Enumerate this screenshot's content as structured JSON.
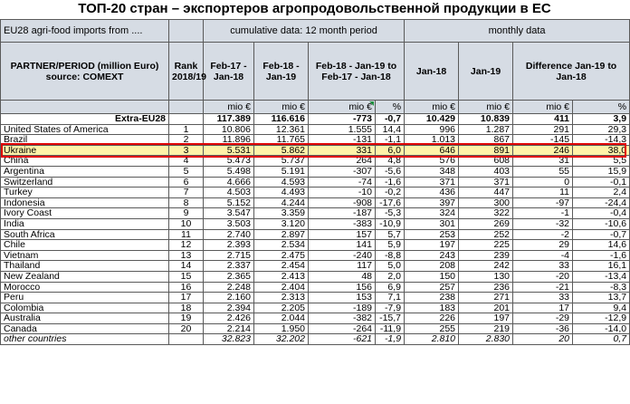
{
  "title": "ТОП-20 стран – экспортеров агропродовольственной продукции в ЕС",
  "header": {
    "top_left": "EU28 agri-food imports from ....",
    "group_cumulative": "cumulative data: 12 month period",
    "group_monthly": "monthly data",
    "col_partner": "PARTNER/PERIOD (million Euro) source: COMEXT",
    "col_rank": "Rank 2018/19",
    "col_c1": "Feb-17 - Jan-18",
    "col_c2": "Feb-18 - Jan-19",
    "col_c3": "Feb-18 - Jan-19 to Feb-17 - Jan-18",
    "col_m1": "Jan-18",
    "col_m2": "Jan-19",
    "col_m3": "Difference Jan-19 to Jan-18",
    "units": [
      "mio €",
      "mio €",
      "mio €",
      "%",
      "mio €",
      "mio €",
      "mio €",
      "%"
    ]
  },
  "rows": [
    {
      "partner": "Extra-EU28",
      "rank": "",
      "c1": "117.389",
      "c2": "116.616",
      "d": "-773",
      "p": "-0,7",
      "m1": "10.429",
      "m2": "10.839",
      "md": "411",
      "mp": "3,9"
    },
    {
      "partner": "United States of America",
      "rank": "1",
      "c1": "10.806",
      "c2": "12.361",
      "d": "1.555",
      "p": "14,4",
      "m1": "996",
      "m2": "1.287",
      "md": "291",
      "mp": "29,3"
    },
    {
      "partner": "Brazil",
      "rank": "2",
      "c1": "11.896",
      "c2": "11.765",
      "d": "-131",
      "p": "-1,1",
      "m1": "1.013",
      "m2": "867",
      "md": "-145",
      "mp": "-14,3"
    },
    {
      "partner": "Ukraine",
      "rank": "3",
      "c1": "5.531",
      "c2": "5.862",
      "d": "331",
      "p": "6,0",
      "m1": "646",
      "m2": "891",
      "md": "246",
      "mp": "38,0"
    },
    {
      "partner": "China",
      "rank": "4",
      "c1": "5.473",
      "c2": "5.737",
      "d": "264",
      "p": "4,8",
      "m1": "576",
      "m2": "608",
      "md": "31",
      "mp": "5,5"
    },
    {
      "partner": "Argentina",
      "rank": "5",
      "c1": "5.498",
      "c2": "5.191",
      "d": "-307",
      "p": "-5,6",
      "m1": "348",
      "m2": "403",
      "md": "55",
      "mp": "15,9"
    },
    {
      "partner": "Switzerland",
      "rank": "6",
      "c1": "4.666",
      "c2": "4.593",
      "d": "-74",
      "p": "-1,6",
      "m1": "371",
      "m2": "371",
      "md": "0",
      "mp": "-0,1"
    },
    {
      "partner": "Turkey",
      "rank": "7",
      "c1": "4.503",
      "c2": "4.493",
      "d": "-10",
      "p": "-0,2",
      "m1": "436",
      "m2": "447",
      "md": "11",
      "mp": "2,4"
    },
    {
      "partner": "Indonesia",
      "rank": "8",
      "c1": "5.152",
      "c2": "4.244",
      "d": "-908",
      "p": "-17,6",
      "m1": "397",
      "m2": "300",
      "md": "-97",
      "mp": "-24,4"
    },
    {
      "partner": "Ivory Coast",
      "rank": "9",
      "c1": "3.547",
      "c2": "3.359",
      "d": "-187",
      "p": "-5,3",
      "m1": "324",
      "m2": "322",
      "md": "-1",
      "mp": "-0,4"
    },
    {
      "partner": "India",
      "rank": "10",
      "c1": "3.503",
      "c2": "3.120",
      "d": "-383",
      "p": "-10,9",
      "m1": "301",
      "m2": "269",
      "md": "-32",
      "mp": "-10,6"
    },
    {
      "partner": "South Africa",
      "rank": "11",
      "c1": "2.740",
      "c2": "2.897",
      "d": "157",
      "p": "5,7",
      "m1": "253",
      "m2": "252",
      "md": "-2",
      "mp": "-0,7"
    },
    {
      "partner": "Chile",
      "rank": "12",
      "c1": "2.393",
      "c2": "2.534",
      "d": "141",
      "p": "5,9",
      "m1": "197",
      "m2": "225",
      "md": "29",
      "mp": "14,6"
    },
    {
      "partner": "Vietnam",
      "rank": "13",
      "c1": "2.715",
      "c2": "2.475",
      "d": "-240",
      "p": "-8,8",
      "m1": "243",
      "m2": "239",
      "md": "-4",
      "mp": "-1,6"
    },
    {
      "partner": "Thailand",
      "rank": "14",
      "c1": "2.337",
      "c2": "2.454",
      "d": "117",
      "p": "5,0",
      "m1": "208",
      "m2": "242",
      "md": "33",
      "mp": "16,1"
    },
    {
      "partner": "New Zealand",
      "rank": "15",
      "c1": "2.365",
      "c2": "2.413",
      "d": "48",
      "p": "2,0",
      "m1": "150",
      "m2": "130",
      "md": "-20",
      "mp": "-13,4"
    },
    {
      "partner": "Morocco",
      "rank": "16",
      "c1": "2.248",
      "c2": "2.404",
      "d": "156",
      "p": "6,9",
      "m1": "257",
      "m2": "236",
      "md": "-21",
      "mp": "-8,3"
    },
    {
      "partner": "Peru",
      "rank": "17",
      "c1": "2.160",
      "c2": "2.313",
      "d": "153",
      "p": "7,1",
      "m1": "238",
      "m2": "271",
      "md": "33",
      "mp": "13,7"
    },
    {
      "partner": "Colombia",
      "rank": "18",
      "c1": "2.394",
      "c2": "2.205",
      "d": "-189",
      "p": "-7,9",
      "m1": "183",
      "m2": "201",
      "md": "17",
      "mp": "9,4"
    },
    {
      "partner": "Australia",
      "rank": "19",
      "c1": "2.426",
      "c2": "2.044",
      "d": "-382",
      "p": "-15,7",
      "m1": "226",
      "m2": "197",
      "md": "-29",
      "mp": "-12,9"
    },
    {
      "partner": "Canada",
      "rank": "20",
      "c1": "2.214",
      "c2": "1.950",
      "d": "-264",
      "p": "-11,9",
      "m1": "255",
      "m2": "219",
      "md": "-36",
      "mp": "-14,0"
    },
    {
      "partner": "other countries",
      "rank": "",
      "c1": "32.823",
      "c2": "32.202",
      "d": "-621",
      "p": "-1,9",
      "m1": "2.810",
      "m2": "2.830",
      "md": "20",
      "mp": "0,7"
    }
  ]
}
